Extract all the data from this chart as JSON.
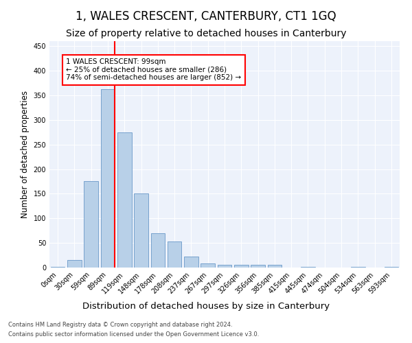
{
  "title": "1, WALES CRESCENT, CANTERBURY, CT1 1GQ",
  "subtitle": "Size of property relative to detached houses in Canterbury",
  "xlabel": "Distribution of detached houses by size in Canterbury",
  "ylabel": "Number of detached properties",
  "categories": [
    "0sqm",
    "30sqm",
    "59sqm",
    "89sqm",
    "119sqm",
    "148sqm",
    "178sqm",
    "208sqm",
    "237sqm",
    "267sqm",
    "297sqm",
    "326sqm",
    "356sqm",
    "385sqm",
    "415sqm",
    "445sqm",
    "474sqm",
    "504sqm",
    "534sqm",
    "563sqm",
    "593sqm"
  ],
  "values": [
    2,
    16,
    175,
    363,
    275,
    150,
    70,
    53,
    22,
    8,
    5,
    5,
    5,
    5,
    0,
    2,
    0,
    0,
    1,
    0,
    1
  ],
  "bar_color": "#b8d0e8",
  "bar_edge_color": "#6898c8",
  "red_line_index": 3,
  "annotation_title": "1 WALES CRESCENT: 99sqm",
  "annotation_line1": "← 25% of detached houses are smaller (286)",
  "annotation_line2": "74% of semi-detached houses are larger (852) →",
  "ylim": [
    0,
    460
  ],
  "yticks": [
    0,
    50,
    100,
    150,
    200,
    250,
    300,
    350,
    400,
    450
  ],
  "footer_line1": "Contains HM Land Registry data © Crown copyright and database right 2024.",
  "footer_line2": "Contains public sector information licensed under the Open Government Licence v3.0.",
  "background_color": "#edf2fb",
  "title_fontsize": 12,
  "subtitle_fontsize": 10,
  "xlabel_fontsize": 9.5,
  "ylabel_fontsize": 8.5,
  "tick_fontsize": 7,
  "footer_fontsize": 6
}
